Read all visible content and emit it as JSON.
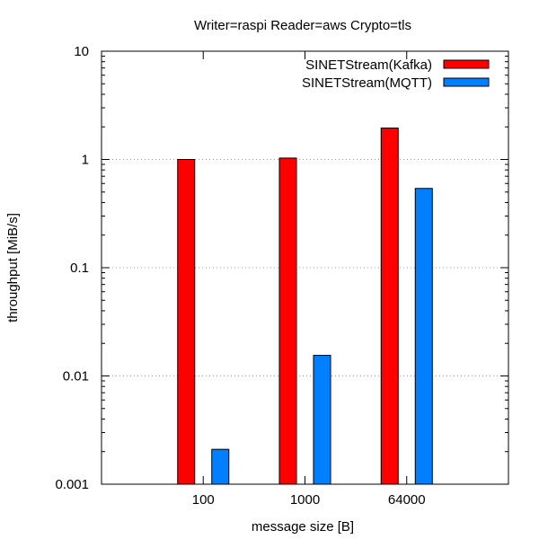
{
  "chart_data": {
    "type": "bar",
    "title": "Writer=raspi Reader=aws Crypto=tls",
    "xlabel": "message size [B]",
    "ylabel": "throughput [MiB/s]",
    "y_scale": "log",
    "ylim": [
      0.001,
      10
    ],
    "yticks": [
      {
        "value": 0.001,
        "label": "0.001"
      },
      {
        "value": 0.01,
        "label": "0.01"
      },
      {
        "value": 0.1,
        "label": "0.1"
      },
      {
        "value": 1,
        "label": "1"
      },
      {
        "value": 10,
        "label": "10"
      }
    ],
    "categories": [
      "100",
      "1000",
      "64000"
    ],
    "grid": "horizontal dotted",
    "legend_position": "top-right",
    "series": [
      {
        "name": "SINETStream(Kafka)",
        "color": "#ff0000",
        "values": [
          1.0,
          1.03,
          1.95
        ]
      },
      {
        "name": "SINETStream(MQTT)",
        "color": "#0080ff",
        "values": [
          0.0021,
          0.0155,
          0.54
        ]
      }
    ]
  }
}
